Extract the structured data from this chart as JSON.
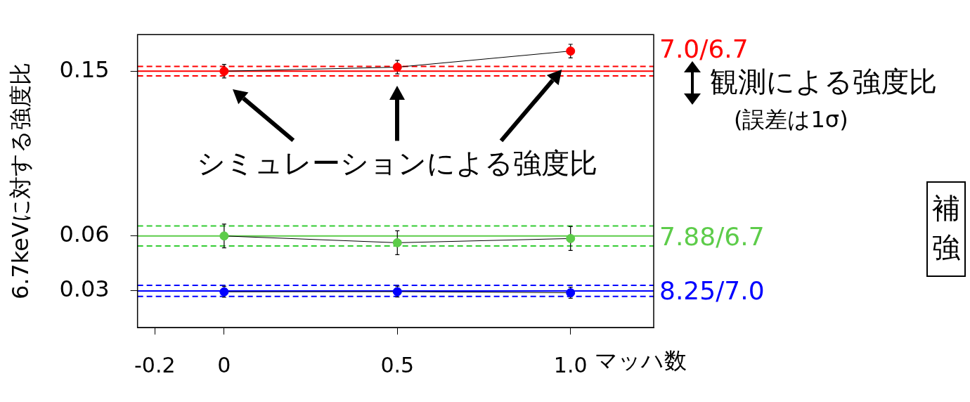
{
  "chart_data": {
    "type": "line",
    "ylabel": "6.7keVに対する強度比",
    "xlabel": "マッハ数",
    "x": [
      0,
      0.5,
      1.0
    ],
    "xlim": [
      -0.25,
      1.24
    ],
    "xticks": [
      {
        "value": -0.2,
        "label": "-0.2"
      },
      0,
      0.5,
      {
        "value": 1.0,
        "label": "1.0"
      }
    ],
    "ylim": [
      0.01,
      0.17
    ],
    "yticks": [
      0.03,
      0.06,
      0.15
    ],
    "series": [
      {
        "name": "7.0/6.7",
        "color": "#ff0000",
        "values": [
          0.15,
          0.1522,
          0.161
        ],
        "errors": [
          0.0037,
          0.0037,
          0.0037
        ]
      },
      {
        "name": "7.88/6.7",
        "color": "#5dcc4a",
        "values": [
          0.06,
          0.0563,
          0.0586
        ],
        "errors": [
          0.0065,
          0.0065,
          0.0065
        ]
      },
      {
        "name": "8.25/7.0",
        "color": "#0000ff",
        "values": [
          0.0295,
          0.0296,
          0.029
        ],
        "errors": [
          0.003,
          0.003,
          0.003
        ]
      }
    ],
    "ref_lines": [
      {
        "axis": "y",
        "value": 0.15,
        "color": "#ff0000",
        "line_style": "solid"
      },
      {
        "axis": "y",
        "value": 0.06,
        "color": "#5dcc4a",
        "line_style": "solid"
      },
      {
        "axis": "y",
        "value": 0.03,
        "color": "#0000ff",
        "line_style": "solid"
      },
      {
        "axis": "y",
        "value": 0.1474,
        "color": "#ff0000",
        "line_style": "dashed"
      },
      {
        "axis": "y",
        "value": 0.1526,
        "color": "#ff0000",
        "line_style": "dashed"
      },
      {
        "axis": "y",
        "value": 0.0545,
        "color": "#33cc33",
        "line_style": "dashed"
      },
      {
        "axis": "y",
        "value": 0.0655,
        "color": "#33cc33",
        "line_style": "dashed"
      },
      {
        "axis": "y",
        "value": 0.027,
        "color": "#0000ff",
        "line_style": "dashed"
      },
      {
        "axis": "y",
        "value": 0.033,
        "color": "#0000ff",
        "line_style": "dashed"
      }
    ],
    "annotations": [
      "シミュレーションによる強度比",
      "観測による強度比",
      "(誤差は1σ)",
      "補",
      "強"
    ],
    "marker": "circle",
    "line_style": "solid",
    "grid": false,
    "legend": false
  }
}
